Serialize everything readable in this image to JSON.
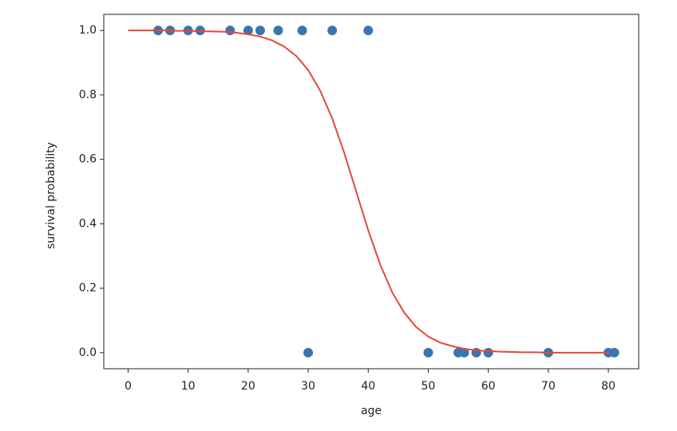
{
  "chart_data": {
    "type": "scatter",
    "xlabel": "age",
    "ylabel": "survival probability",
    "xlim": [
      -4.05,
      85.05
    ],
    "ylim": [
      -0.05,
      1.05
    ],
    "xticks": [
      0,
      10,
      20,
      30,
      40,
      50,
      60,
      70,
      80
    ],
    "yticks": [
      {
        "value": 0,
        "label": "0.0"
      },
      {
        "value": 0.2,
        "label": "0.2"
      },
      {
        "value": 0.4,
        "label": "0.4"
      },
      {
        "value": 0.6,
        "label": "0.6"
      },
      {
        "value": 0.8,
        "label": "0.8"
      },
      {
        "value": 1,
        "label": "1.0"
      }
    ],
    "series": [
      {
        "type": "scatter",
        "color": "#3a75b0",
        "x": [
          5,
          7,
          10,
          12,
          17,
          20,
          22,
          25,
          29,
          34,
          40,
          30,
          50,
          55,
          56,
          58,
          60,
          70,
          80,
          81
        ],
        "values": [
          1,
          1,
          1,
          1,
          1,
          1,
          1,
          1,
          1,
          1,
          1,
          0,
          0,
          0,
          0,
          0,
          0,
          0,
          0,
          0
        ]
      },
      {
        "type": "line",
        "color": "#e8463a",
        "x": [
          0,
          2,
          4,
          6,
          8,
          10,
          12,
          14,
          16,
          18,
          20,
          22,
          24,
          26,
          28,
          30,
          32,
          34,
          36,
          38,
          40,
          42,
          44,
          46,
          48,
          50,
          52,
          54,
          56,
          58,
          60,
          62,
          64,
          66,
          68,
          70,
          72,
          74,
          76,
          78,
          80
        ],
        "values": [
          1.0,
          1.0,
          1.0,
          1.0,
          0.999,
          0.999,
          0.998,
          0.997,
          0.996,
          0.993,
          0.988,
          0.981,
          0.969,
          0.95,
          0.921,
          0.877,
          0.813,
          0.727,
          0.62,
          0.5,
          0.38,
          0.273,
          0.187,
          0.124,
          0.079,
          0.05,
          0.031,
          0.02,
          0.012,
          0.007,
          0.005,
          0.003,
          0.002,
          0.001,
          0.001,
          0.0,
          0.0,
          0.0,
          0.0,
          0.0,
          0.0
        ]
      }
    ]
  }
}
